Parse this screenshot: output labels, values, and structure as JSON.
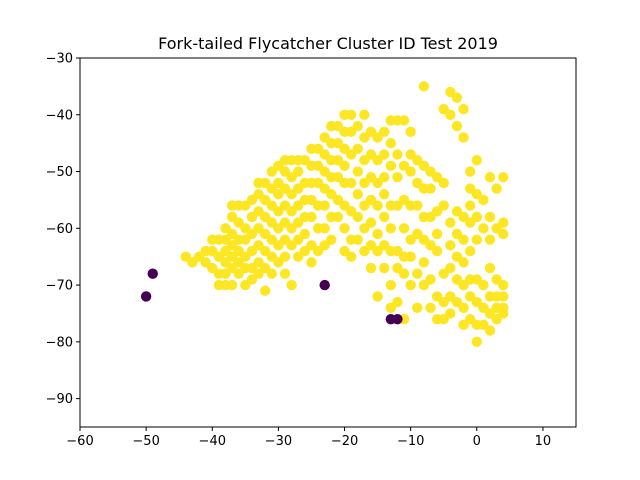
{
  "chart_data": {
    "type": "scatter",
    "title": "Fork-tailed Flycatcher Cluster ID Test 2019",
    "xlabel": "",
    "ylabel": "",
    "xlim": [
      -60,
      15
    ],
    "ylim": [
      -95,
      -30
    ],
    "xticks": [
      -60,
      -50,
      -40,
      -30,
      -20,
      -10,
      0,
      10
    ],
    "yticks": [
      -30,
      -40,
      -50,
      -60,
      -70,
      -80,
      -90
    ],
    "grid": false,
    "legend": "none",
    "colors": {
      "cluster_0": "#440154",
      "cluster_1": "#fde725"
    },
    "series": [
      {
        "cluster": 0,
        "color": "#440154",
        "points": [
          [
            -50,
            -72
          ],
          [
            -49,
            -68
          ],
          [
            -23,
            -70
          ],
          [
            -13,
            -76
          ],
          [
            -12,
            -76
          ]
        ]
      },
      {
        "cluster": 1,
        "color": "#fde725",
        "points": [
          [
            -44,
            -65
          ],
          [
            -43,
            -66
          ],
          [
            -42,
            -65
          ],
          [
            -41,
            -64
          ],
          [
            -41,
            -66
          ],
          [
            -40,
            -62
          ],
          [
            -40,
            -64
          ],
          [
            -40,
            -67
          ],
          [
            -39,
            -62
          ],
          [
            -39,
            -65
          ],
          [
            -39,
            -68
          ],
          [
            -39,
            -70
          ],
          [
            -38,
            -60
          ],
          [
            -38,
            -62
          ],
          [
            -38,
            -64
          ],
          [
            -38,
            -66
          ],
          [
            -38,
            -68
          ],
          [
            -38,
            -70
          ],
          [
            -37,
            -56
          ],
          [
            -37,
            -58
          ],
          [
            -37,
            -61
          ],
          [
            -37,
            -63
          ],
          [
            -37,
            -65
          ],
          [
            -37,
            -67
          ],
          [
            -37,
            -70
          ],
          [
            -36,
            -56
          ],
          [
            -36,
            -59
          ],
          [
            -36,
            -62
          ],
          [
            -36,
            -64
          ],
          [
            -36,
            -66
          ],
          [
            -36,
            -68
          ],
          [
            -35,
            -56
          ],
          [
            -35,
            -60
          ],
          [
            -35,
            -62
          ],
          [
            -35,
            -65
          ],
          [
            -35,
            -67
          ],
          [
            -35,
            -70
          ],
          [
            -34,
            -55
          ],
          [
            -34,
            -58
          ],
          [
            -34,
            -61
          ],
          [
            -34,
            -64
          ],
          [
            -34,
            -67
          ],
          [
            -34,
            -69
          ],
          [
            -33,
            -52
          ],
          [
            -33,
            -54
          ],
          [
            -33,
            -57
          ],
          [
            -33,
            -60
          ],
          [
            -33,
            -63
          ],
          [
            -33,
            -66
          ],
          [
            -33,
            -68
          ],
          [
            -32,
            -52
          ],
          [
            -32,
            -55
          ],
          [
            -32,
            -58
          ],
          [
            -32,
            -61
          ],
          [
            -32,
            -64
          ],
          [
            -32,
            -67
          ],
          [
            -32,
            -71
          ],
          [
            -31,
            -50
          ],
          [
            -31,
            -53
          ],
          [
            -31,
            -56
          ],
          [
            -31,
            -59
          ],
          [
            -31,
            -62
          ],
          [
            -31,
            -65
          ],
          [
            -31,
            -68
          ],
          [
            -30,
            -49
          ],
          [
            -30,
            -52
          ],
          [
            -30,
            -54
          ],
          [
            -30,
            -57
          ],
          [
            -30,
            -60
          ],
          [
            -30,
            -63
          ],
          [
            -30,
            -66
          ],
          [
            -29,
            -48
          ],
          [
            -29,
            -50
          ],
          [
            -29,
            -53
          ],
          [
            -29,
            -56
          ],
          [
            -29,
            -59
          ],
          [
            -29,
            -62
          ],
          [
            -29,
            -65
          ],
          [
            -29,
            -68
          ],
          [
            -28,
            -48
          ],
          [
            -28,
            -51
          ],
          [
            -28,
            -54
          ],
          [
            -28,
            -57
          ],
          [
            -28,
            -60
          ],
          [
            -28,
            -63
          ],
          [
            -28,
            -70
          ],
          [
            -27,
            -48
          ],
          [
            -27,
            -50
          ],
          [
            -27,
            -53
          ],
          [
            -27,
            -56
          ],
          [
            -27,
            -59
          ],
          [
            -27,
            -62
          ],
          [
            -27,
            -65
          ],
          [
            -26,
            -48
          ],
          [
            -26,
            -52
          ],
          [
            -26,
            -55
          ],
          [
            -26,
            -58
          ],
          [
            -26,
            -61
          ],
          [
            -26,
            -64
          ],
          [
            -25,
            -46
          ],
          [
            -25,
            -49
          ],
          [
            -25,
            -52
          ],
          [
            -25,
            -55
          ],
          [
            -25,
            -58
          ],
          [
            -25,
            -63
          ],
          [
            -25,
            -66
          ],
          [
            -24,
            -46
          ],
          [
            -24,
            -49
          ],
          [
            -24,
            -52
          ],
          [
            -24,
            -56
          ],
          [
            -24,
            -60
          ],
          [
            -24,
            -64
          ],
          [
            -23,
            -44
          ],
          [
            -23,
            -47
          ],
          [
            -23,
            -50
          ],
          [
            -23,
            -53
          ],
          [
            -23,
            -56
          ],
          [
            -23,
            -60
          ],
          [
            -23,
            -63
          ],
          [
            -22,
            -42
          ],
          [
            -22,
            -45
          ],
          [
            -22,
            -48
          ],
          [
            -22,
            -51
          ],
          [
            -22,
            -54
          ],
          [
            -22,
            -58
          ],
          [
            -22,
            -62
          ],
          [
            -21,
            -42
          ],
          [
            -21,
            -45
          ],
          [
            -21,
            -48
          ],
          [
            -21,
            -51
          ],
          [
            -21,
            -55
          ],
          [
            -21,
            -58
          ],
          [
            -20,
            -40
          ],
          [
            -20,
            -43
          ],
          [
            -20,
            -46
          ],
          [
            -20,
            -49
          ],
          [
            -20,
            -52
          ],
          [
            -20,
            -56
          ],
          [
            -20,
            -60
          ],
          [
            -20,
            -64
          ],
          [
            -19,
            -40
          ],
          [
            -19,
            -43
          ],
          [
            -19,
            -47
          ],
          [
            -19,
            -52
          ],
          [
            -19,
            -57
          ],
          [
            -19,
            -62
          ],
          [
            -19,
            -65
          ],
          [
            -18,
            -42
          ],
          [
            -18,
            -46
          ],
          [
            -18,
            -50
          ],
          [
            -18,
            -54
          ],
          [
            -18,
            -58
          ],
          [
            -18,
            -62
          ],
          [
            -17,
            -40
          ],
          [
            -17,
            -44
          ],
          [
            -17,
            -48
          ],
          [
            -17,
            -52
          ],
          [
            -17,
            -56
          ],
          [
            -17,
            -60
          ],
          [
            -17,
            -64
          ],
          [
            -16,
            -43
          ],
          [
            -16,
            -47
          ],
          [
            -16,
            -51
          ],
          [
            -16,
            -55
          ],
          [
            -16,
            -59
          ],
          [
            -16,
            -63
          ],
          [
            -16,
            -67
          ],
          [
            -15,
            -44
          ],
          [
            -15,
            -48
          ],
          [
            -15,
            -52
          ],
          [
            -15,
            -56
          ],
          [
            -15,
            -61
          ],
          [
            -15,
            -64
          ],
          [
            -15,
            -72
          ],
          [
            -14,
            -43
          ],
          [
            -14,
            -47
          ],
          [
            -14,
            -51
          ],
          [
            -14,
            -54
          ],
          [
            -14,
            -58
          ],
          [
            -14,
            -63
          ],
          [
            -14,
            -67
          ],
          [
            -13,
            -41
          ],
          [
            -13,
            -45
          ],
          [
            -13,
            -49
          ],
          [
            -13,
            -56
          ],
          [
            -13,
            -60
          ],
          [
            -13,
            -64
          ],
          [
            -13,
            -70
          ],
          [
            -13,
            -74
          ],
          [
            -12,
            -41
          ],
          [
            -12,
            -47
          ],
          [
            -12,
            -51
          ],
          [
            -12,
            -56
          ],
          [
            -12,
            -64
          ],
          [
            -12,
            -67
          ],
          [
            -12,
            -73
          ],
          [
            -11,
            -41
          ],
          [
            -11,
            -49
          ],
          [
            -11,
            -55
          ],
          [
            -11,
            -60
          ],
          [
            -11,
            -65
          ],
          [
            -11,
            -68
          ],
          [
            -11,
            -76
          ],
          [
            -10,
            -43
          ],
          [
            -10,
            -47
          ],
          [
            -10,
            -50
          ],
          [
            -10,
            -56
          ],
          [
            -10,
            -62
          ],
          [
            -10,
            -65
          ],
          [
            -10,
            -70
          ],
          [
            -9,
            -48
          ],
          [
            -9,
            -52
          ],
          [
            -9,
            -56
          ],
          [
            -9,
            -61
          ],
          [
            -9,
            -68
          ],
          [
            -9,
            -74
          ],
          [
            -8,
            -35
          ],
          [
            -8,
            -49
          ],
          [
            -8,
            -53
          ],
          [
            -8,
            -58
          ],
          [
            -8,
            -62
          ],
          [
            -8,
            -66
          ],
          [
            -8,
            -70
          ],
          [
            -7,
            -50
          ],
          [
            -7,
            -53
          ],
          [
            -7,
            -58
          ],
          [
            -7,
            -63
          ],
          [
            -7,
            -69
          ],
          [
            -7,
            -74
          ],
          [
            -6,
            -51
          ],
          [
            -6,
            -57
          ],
          [
            -6,
            -61
          ],
          [
            -6,
            -64
          ],
          [
            -6,
            -72
          ],
          [
            -6,
            -76
          ],
          [
            -5,
            -39
          ],
          [
            -5,
            -52
          ],
          [
            -5,
            -56
          ],
          [
            -5,
            -68
          ],
          [
            -5,
            -73
          ],
          [
            -5,
            -76
          ],
          [
            -4,
            -36
          ],
          [
            -4,
            -40
          ],
          [
            -4,
            -59
          ],
          [
            -4,
            -63
          ],
          [
            -4,
            -67
          ],
          [
            -4,
            -72
          ],
          [
            -4,
            -75
          ],
          [
            -3,
            -37
          ],
          [
            -3,
            -42
          ],
          [
            -3,
            -57
          ],
          [
            -3,
            -61
          ],
          [
            -3,
            -65
          ],
          [
            -3,
            -69
          ],
          [
            -3,
            -73
          ],
          [
            -2,
            -39
          ],
          [
            -2,
            -44
          ],
          [
            -2,
            -58
          ],
          [
            -2,
            -62
          ],
          [
            -2,
            -66
          ],
          [
            -2,
            -70
          ],
          [
            -2,
            -74
          ],
          [
            -2,
            -77
          ],
          [
            -1,
            -50
          ],
          [
            -1,
            -53
          ],
          [
            -1,
            -56
          ],
          [
            -1,
            -59
          ],
          [
            -1,
            -64
          ],
          [
            -1,
            -69
          ],
          [
            -1,
            -72
          ],
          [
            -1,
            -76
          ],
          [
            0,
            -48
          ],
          [
            0,
            -54
          ],
          [
            0,
            -58
          ],
          [
            0,
            -62
          ],
          [
            0,
            -69
          ],
          [
            0,
            -73
          ],
          [
            0,
            -77
          ],
          [
            0,
            -80
          ],
          [
            1,
            -55
          ],
          [
            1,
            -60
          ],
          [
            1,
            -70
          ],
          [
            1,
            -74
          ],
          [
            1,
            -77
          ],
          [
            2,
            -51
          ],
          [
            2,
            -58
          ],
          [
            2,
            -62
          ],
          [
            2,
            -67
          ],
          [
            2,
            -72
          ],
          [
            2,
            -75
          ],
          [
            2,
            -78
          ],
          [
            3,
            -53
          ],
          [
            3,
            -60
          ],
          [
            3,
            -69
          ],
          [
            3,
            -72
          ],
          [
            3,
            -74
          ],
          [
            3,
            -76
          ],
          [
            4,
            -51
          ],
          [
            4,
            -59
          ],
          [
            4,
            -61
          ],
          [
            4,
            -70
          ],
          [
            4,
            -72
          ],
          [
            4,
            -74
          ],
          [
            4,
            -75
          ]
        ]
      }
    ]
  }
}
